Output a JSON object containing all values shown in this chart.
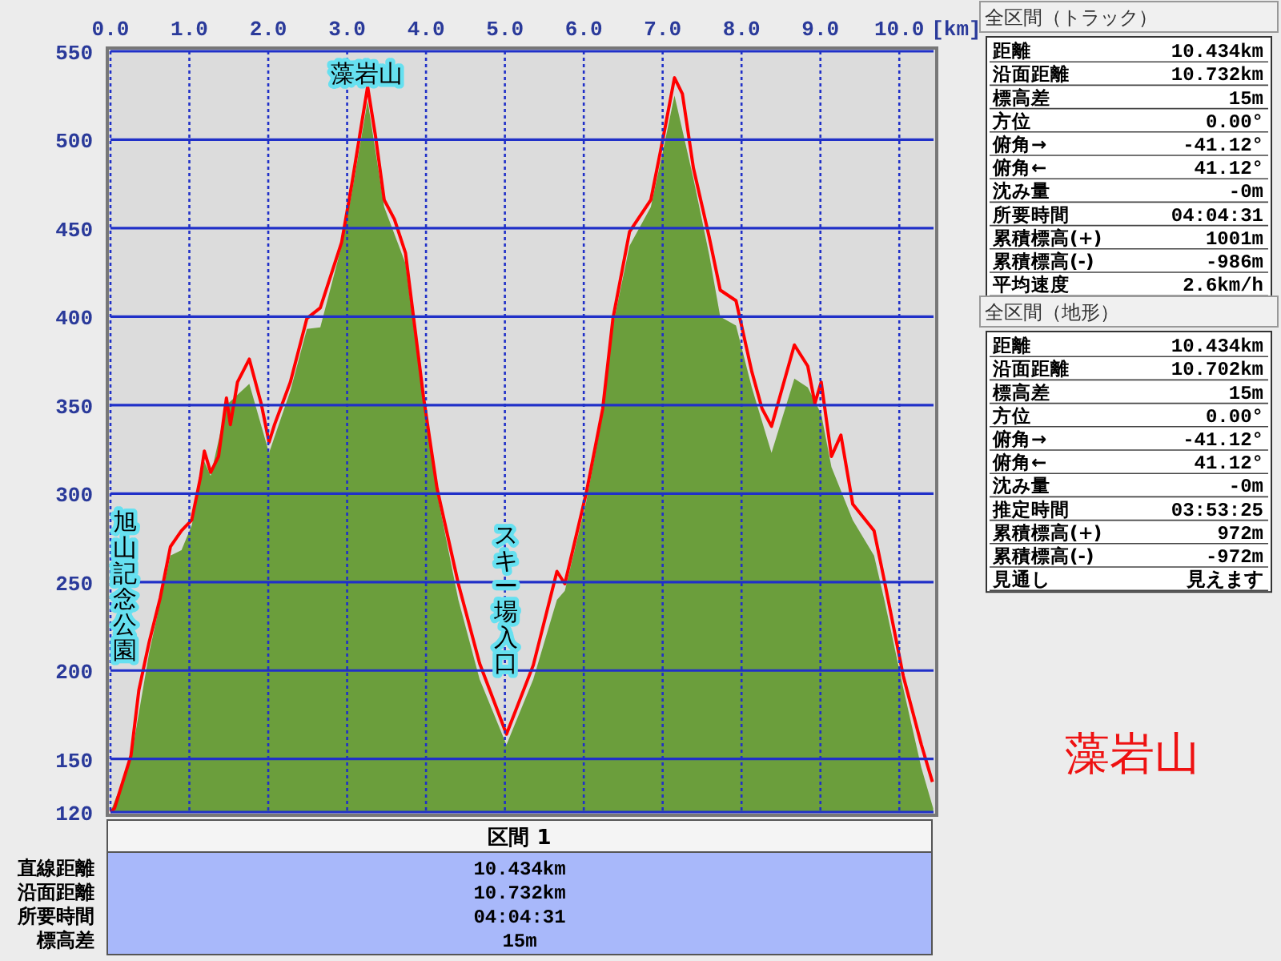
{
  "chart_data": [
    {
      "type": "area",
      "xlim": [
        0,
        10.434
      ],
      "ylim": [
        120,
        550
      ],
      "xticks": [
        {
          "value": 0,
          "label": "0.0"
        },
        {
          "value": 1,
          "label": "1.0"
        },
        {
          "value": 2,
          "label": "2.0"
        },
        {
          "value": 3,
          "label": "3.0"
        },
        {
          "value": 4,
          "label": "4.0"
        },
        {
          "value": 5,
          "label": "5.0"
        },
        {
          "value": 6,
          "label": "6.0"
        },
        {
          "value": 7,
          "label": "7.0"
        },
        {
          "value": 8,
          "label": "8.0"
        },
        {
          "value": 9,
          "label": "9.0"
        },
        {
          "value": 10,
          "label": "10.0"
        }
      ],
      "xlabel": "[km]",
      "yticks": [
        120,
        150,
        200,
        250,
        300,
        350,
        400,
        450,
        500,
        550
      ],
      "grid": true,
      "series": [
        {
          "type": "area",
          "color": "#6b9e3c",
          "x": [
            0,
            0.26,
            0.49,
            0.76,
            0.9,
            1.03,
            1.19,
            1.27,
            1.47,
            1.76,
            2.01,
            2.28,
            2.49,
            2.66,
            2.93,
            3.06,
            3.26,
            3.47,
            3.74,
            3.97,
            4.14,
            4.41,
            4.68,
            5.02,
            5.36,
            5.66,
            5.76,
            6.03,
            6.24,
            6.37,
            6.58,
            6.85,
            7.01,
            7.15,
            7.39,
            7.59,
            7.73,
            7.93,
            8.13,
            8.38,
            8.67,
            8.84,
            9.01,
            9.14,
            9.41,
            9.68,
            9.81,
            10.05,
            10.28,
            10.43
          ],
          "values": [
            120,
            150,
            210,
            265,
            268,
            282,
            318,
            310,
            350,
            362,
            323,
            358,
            393,
            394,
            440,
            470,
            522,
            462,
            430,
            350,
            300,
            240,
            195,
            158,
            195,
            240,
            245,
            295,
            345,
            395,
            440,
            462,
            495,
            525,
            478,
            435,
            400,
            395,
            360,
            323,
            365,
            360,
            345,
            315,
            285,
            265,
            240,
            190,
            145,
            122
          ]
        },
        {
          "type": "line",
          "color": "#ff0000",
          "line_style": "solid",
          "x": [
            0,
            0.05,
            0.26,
            0.36,
            0.49,
            0.63,
            0.76,
            0.9,
            1.03,
            1.14,
            1.19,
            1.27,
            1.37,
            1.47,
            1.52,
            1.61,
            1.76,
            1.91,
            2.01,
            2.08,
            2.28,
            2.49,
            2.66,
            2.93,
            3.06,
            3.26,
            3.36,
            3.47,
            3.6,
            3.74,
            3.97,
            4.14,
            4.41,
            4.68,
            5.02,
            5.36,
            5.66,
            5.76,
            6.03,
            6.24,
            6.37,
            6.58,
            6.85,
            7.01,
            7.15,
            7.25,
            7.39,
            7.59,
            7.73,
            7.93,
            8.13,
            8.26,
            8.38,
            8.67,
            8.84,
            8.93,
            9.01,
            9.14,
            9.26,
            9.41,
            9.68,
            9.81,
            10.05,
            10.28,
            10.42
          ],
          "values": [
            120,
            122,
            152,
            189,
            216,
            241,
            270,
            279,
            285,
            309,
            324,
            312,
            321,
            354,
            339,
            363,
            376,
            351,
            329,
            339,
            363,
            399,
            405,
            442,
            475,
            530,
            502,
            466,
            455,
            436,
            354,
            303,
            249,
            204,
            164,
            203,
            256,
            249,
            300,
            348,
            399,
            448,
            466,
            502,
            535,
            526,
            484,
            445,
            415,
            409,
            369,
            348,
            338,
            384,
            372,
            351,
            363,
            321,
            333,
            294,
            279,
            251,
            197,
            158,
            137
          ]
        }
      ],
      "annotations": [
        "藻岩山",
        "旭山記念公園",
        "スキー場入口",
        "藻岩山"
      ]
    },
    {
      "type": "other",
      "title": "全区間（トラック）",
      "categories": [
        "距離",
        "沿面距離",
        "標高差",
        "方位",
        "俯角→",
        "俯角←",
        "沈み量",
        "所要時間",
        "累積標高(+)",
        "累積標高(-)",
        "平均速度"
      ],
      "value_labels": [
        "10.434km",
        "10.732km",
        "15m",
        "0.00°",
        "-41.12°",
        "41.12°",
        "-0m",
        "04:04:31",
        "1001m",
        "-986m",
        "2.6km/h"
      ]
    },
    {
      "type": "other",
      "title": "全区間（地形）",
      "categories": [
        "距離",
        "沿面距離",
        "標高差",
        "方位",
        "俯角→",
        "俯角←",
        "沈み量",
        "推定時間",
        "累積標高(+)",
        "累積標高(-)",
        "見通し"
      ],
      "value_labels": [
        "10.434km",
        "10.702km",
        "15m",
        "0.00°",
        "-41.12°",
        "41.12°",
        "-0m",
        "03:53:25",
        "972m",
        "-972m",
        "見えます"
      ]
    },
    {
      "type": "other",
      "title": "区間 1",
      "categories": [
        "直線距離",
        "沿面距離",
        "所要時間",
        "標高差"
      ],
      "value_labels": [
        "10.434km",
        "10.732km",
        "04:04:31",
        "15m"
      ]
    }
  ]
}
